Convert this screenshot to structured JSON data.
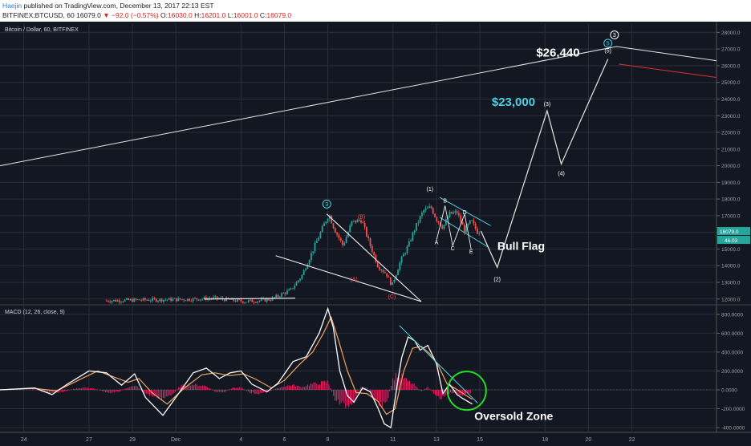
{
  "header": {
    "author": "Haejin",
    "published_text": " published on TradingView.com, December 13, 2017 22:13 EST",
    "symbol": "BITFINEX:BTCUSD, 60",
    "last": "16079.0",
    "change": "−92.0 (−0.57%)",
    "open_label": "O:",
    "open": "16030.0",
    "high_label": "H:",
    "high": "16201.0",
    "low_label": "L:",
    "low": "16001.0",
    "close_label": "C:",
    "close": "16079.0"
  },
  "colors": {
    "bg": "#131722",
    "up": "#26a69a",
    "down": "#ef5350",
    "grid": "#2a2e39",
    "text_light": "#d1d4dc",
    "teal": "#4dd0e1",
    "macd_line": "#ffffff",
    "signal_line": "#f4a460",
    "histogram": "#e91e63",
    "oversold_circle": "#22dd22"
  },
  "chart_data": [
    {
      "type": "candlestick",
      "title": "Bitcoin / Dollar, 60, BITFINEX",
      "ylim": [
        11700,
        28500
      ],
      "y_ticks": [
        12000,
        13000,
        14000,
        15000,
        16000,
        17000,
        18000,
        19000,
        20000,
        21000,
        22000,
        23000,
        24000,
        25000,
        26000,
        27000,
        28000
      ],
      "y_tick_labels": [
        "12000.0",
        "13000.0",
        "14000.0",
        "15000.0",
        "16000.0",
        "17000.0",
        "18000.0",
        "19000.0",
        "20000.0",
        "21000.0",
        "22000.0",
        "23000.0",
        "24000.0",
        "25000.0",
        "26000.0",
        "27000.0",
        "28000.0"
      ],
      "x_tick_labels": [
        "24",
        "27",
        "29",
        "Dec",
        "4",
        "6",
        "8",
        "11",
        "13",
        "15",
        "18",
        "20",
        "22"
      ],
      "x_tick_days": [
        -7,
        -4,
        -2,
        0,
        3,
        5,
        7,
        10,
        12,
        14,
        17,
        19,
        21
      ],
      "x_range_days": [
        -8.1,
        24.9
      ],
      "price_path": [
        [
          -3.2,
          11900
        ],
        [
          -1.3,
          11950
        ],
        [
          0.5,
          11980
        ],
        [
          1.8,
          12050
        ],
        [
          3.2,
          11850
        ],
        [
          3.8,
          11900
        ],
        [
          4.4,
          12000
        ],
        [
          5.3,
          12550
        ],
        [
          5.8,
          13400
        ],
        [
          6.4,
          15200
        ],
        [
          6.8,
          16400
        ],
        [
          7.05,
          17100
        ],
        [
          7.3,
          16200
        ],
        [
          7.7,
          15200
        ],
        [
          8.1,
          16600
        ],
        [
          8.55,
          16750
        ],
        [
          8.9,
          15400
        ],
        [
          9.3,
          14000
        ],
        [
          9.7,
          13500
        ],
        [
          9.95,
          12800
        ],
        [
          10.35,
          14300
        ],
        [
          10.7,
          15200
        ],
        [
          11.0,
          16200
        ],
        [
          11.4,
          17300
        ],
        [
          11.75,
          17500
        ],
        [
          12.0,
          16800
        ],
        [
          12.3,
          16300
        ],
        [
          12.6,
          17100
        ],
        [
          12.95,
          17200
        ],
        [
          13.3,
          16100
        ],
        [
          13.6,
          16700
        ],
        [
          13.9,
          16000
        ],
        [
          14.05,
          16079
        ]
      ],
      "last_price": 16079,
      "last_price_label": "16079.0",
      "second_price_tag": "46.03",
      "projection": [
        [
          14.05,
          16079
        ],
        [
          14.8,
          13900
        ],
        [
          17.1,
          23300
        ],
        [
          17.75,
          20100
        ],
        [
          19.9,
          26400
        ]
      ],
      "trendline_long": [
        [
          -8.1,
          20000
        ],
        [
          20.3,
          27150
        ],
        [
          24.9,
          26300
        ]
      ],
      "red_line": [
        [
          20.4,
          26100
        ],
        [
          24.9,
          25300
        ]
      ],
      "triangle_lines": [
        [
          [
            6.95,
            17100
          ],
          [
            11.3,
            11850
          ]
        ],
        [
          [
            4.6,
            14600
          ],
          [
            11.3,
            11850
          ]
        ],
        [
          [
            1.3,
            12000
          ],
          [
            5.5,
            12050
          ]
        ]
      ],
      "flag_lines": [
        [
          [
            12.15,
            18100
          ],
          [
            14.5,
            16400
          ]
        ],
        [
          [
            12.15,
            16900
          ],
          [
            14.4,
            15100
          ]
        ]
      ],
      "wave_labels": [
        {
          "text": "3",
          "x": 6.95,
          "y": 17700,
          "circle": true,
          "color": "#4dd0e1"
        },
        {
          "text": "(B)",
          "x": 8.55,
          "y": 16950,
          "color": "#ef5350"
        },
        {
          "text": "(A)",
          "x": 8.2,
          "y": 13200,
          "color": "#ef5350"
        },
        {
          "text": "(C)",
          "x": 9.95,
          "y": 12150,
          "color": "#ef5350"
        },
        {
          "text": "(1)",
          "x": 11.7,
          "y": 18600,
          "color": "#ffffff"
        },
        {
          "text": "B",
          "x": 12.4,
          "y": 17900,
          "color": "#ffffff"
        },
        {
          "text": "D",
          "x": 13.3,
          "y": 17200,
          "color": "#ffffff"
        },
        {
          "text": "A",
          "x": 12.0,
          "y": 15400,
          "color": "#ffffff"
        },
        {
          "text": "C",
          "x": 12.75,
          "y": 15050,
          "color": "#ffffff"
        },
        {
          "text": "E",
          "x": 13.6,
          "y": 14850,
          "color": "#ffffff"
        },
        {
          "text": "(2)",
          "x": 14.8,
          "y": 13200,
          "color": "#ffffff"
        },
        {
          "text": "(3)",
          "x": 17.1,
          "y": 23700,
          "color": "#ffffff"
        },
        {
          "text": "(4)",
          "x": 17.75,
          "y": 19550,
          "color": "#ffffff"
        },
        {
          "text": "(5)",
          "x": 19.9,
          "y": 26900,
          "color": "#ffffff"
        },
        {
          "text": "3",
          "x": 20.2,
          "y": 27850,
          "circle": true,
          "color": "#ffffff"
        },
        {
          "text": "5",
          "x": 19.9,
          "y": 27350,
          "circle": true,
          "color": "#4dd0e1"
        }
      ],
      "annotations": [
        {
          "text": "$26,440",
          "x": 17.6,
          "y": 26550,
          "color": "#ffffff",
          "size": 15
        },
        {
          "text": "$23,000",
          "x": 15.55,
          "y": 23600,
          "color": "#4dd0e1",
          "size": 15
        },
        {
          "text": "Bull Flag",
          "x": 15.9,
          "y": 14950,
          "color": "#ffffff",
          "size": 14
        }
      ]
    },
    {
      "type": "line",
      "title": "MACD (12, 26, close, 9)",
      "ylim": [
        -450000,
        900000
      ],
      "y_ticks": [
        -400000,
        -200000,
        0,
        200000,
        400000,
        600000,
        800000
      ],
      "y_tick_labels": [
        "-400.0000",
        "-200.0000",
        "0.0000",
        "200.0000",
        "400.0000",
        "600.0000",
        "800.0000"
      ],
      "series": [
        {
          "name": "MACD",
          "path": [
            [
              -8.1,
              0
            ],
            [
              -6.5,
              20000
            ],
            [
              -5.7,
              -50000
            ],
            [
              -5.0,
              60000
            ],
            [
              -4.0,
              200000
            ],
            [
              -3.2,
              180000
            ],
            [
              -2.5,
              50000
            ],
            [
              -1.9,
              170000
            ],
            [
              -1.4,
              -80000
            ],
            [
              -0.6,
              -270000
            ],
            [
              0.0,
              -80000
            ],
            [
              0.8,
              180000
            ],
            [
              1.4,
              230000
            ],
            [
              2.0,
              120000
            ],
            [
              2.5,
              180000
            ],
            [
              3.0,
              200000
            ],
            [
              3.5,
              60000
            ],
            [
              4.2,
              -20000
            ],
            [
              4.7,
              70000
            ],
            [
              5.4,
              300000
            ],
            [
              6.0,
              350000
            ],
            [
              6.6,
              600000
            ],
            [
              7.0,
              860000
            ],
            [
              7.25,
              660000
            ],
            [
              7.55,
              200000
            ],
            [
              7.9,
              -60000
            ],
            [
              8.2,
              -130000
            ],
            [
              8.6,
              20000
            ],
            [
              8.95,
              -20000
            ],
            [
              9.3,
              -190000
            ],
            [
              9.6,
              -360000
            ],
            [
              9.9,
              -400000
            ],
            [
              10.2,
              60000
            ],
            [
              10.4,
              340000
            ],
            [
              10.7,
              560000
            ],
            [
              11.0,
              520000
            ],
            [
              11.25,
              420000
            ],
            [
              11.6,
              470000
            ],
            [
              12.0,
              280000
            ],
            [
              12.3,
              -40000
            ],
            [
              12.6,
              60000
            ],
            [
              12.95,
              -50000
            ],
            [
              13.2,
              -90000
            ],
            [
              13.5,
              -130000
            ],
            [
              13.65,
              -150000
            ]
          ]
        },
        {
          "name": "Signal",
          "path": [
            [
              -8.1,
              0
            ],
            [
              -6.5,
              15000
            ],
            [
              -5.5,
              -10000
            ],
            [
              -4.5,
              100000
            ],
            [
              -3.6,
              200000
            ],
            [
              -2.9,
              140000
            ],
            [
              -2.2,
              80000
            ],
            [
              -1.7,
              120000
            ],
            [
              -1.1,
              -30000
            ],
            [
              -0.4,
              -150000
            ],
            [
              0.4,
              20000
            ],
            [
              1.2,
              160000
            ],
            [
              1.8,
              180000
            ],
            [
              2.5,
              150000
            ],
            [
              3.1,
              170000
            ],
            [
              3.7,
              110000
            ],
            [
              4.4,
              20000
            ],
            [
              5.0,
              100000
            ],
            [
              5.7,
              270000
            ],
            [
              6.3,
              400000
            ],
            [
              6.8,
              600000
            ],
            [
              7.15,
              770000
            ],
            [
              7.5,
              520000
            ],
            [
              7.9,
              200000
            ],
            [
              8.3,
              -30000
            ],
            [
              8.8,
              -40000
            ],
            [
              9.3,
              -120000
            ],
            [
              9.7,
              -260000
            ],
            [
              10.1,
              -200000
            ],
            [
              10.5,
              200000
            ],
            [
              10.9,
              440000
            ],
            [
              11.3,
              460000
            ],
            [
              11.7,
              380000
            ],
            [
              12.1,
              250000
            ],
            [
              12.5,
              60000
            ],
            [
              12.9,
              10000
            ],
            [
              13.3,
              -50000
            ],
            [
              13.65,
              -100000
            ]
          ]
        }
      ],
      "histogram": [
        [
          -6.6,
          10000
        ],
        [
          -6.2,
          -15000
        ],
        [
          -5.8,
          -40000
        ],
        [
          -5.4,
          -30000
        ],
        [
          -5.0,
          -10000
        ],
        [
          -4.6,
          15000
        ],
        [
          -4.2,
          25000
        ],
        [
          -3.8,
          15000
        ],
        [
          -3.4,
          -15000
        ],
        [
          -3.0,
          -30000
        ],
        [
          -2.6,
          -20000
        ],
        [
          -2.2,
          30000
        ],
        [
          -1.8,
          40000
        ],
        [
          -1.4,
          -40000
        ],
        [
          -1.0,
          -70000
        ],
        [
          -0.6,
          -90000
        ],
        [
          -0.2,
          -60000
        ],
        [
          0.2,
          40000
        ],
        [
          0.6,
          60000
        ],
        [
          1.0,
          50000
        ],
        [
          1.4,
          40000
        ],
        [
          1.8,
          -20000
        ],
        [
          2.2,
          -30000
        ],
        [
          2.6,
          20000
        ],
        [
          3.0,
          25000
        ],
        [
          3.4,
          -30000
        ],
        [
          3.8,
          -40000
        ],
        [
          4.2,
          -25000
        ],
        [
          4.6,
          10000
        ],
        [
          5.0,
          40000
        ],
        [
          5.4,
          50000
        ],
        [
          5.8,
          30000
        ],
        [
          6.2,
          60000
        ],
        [
          6.6,
          70000
        ],
        [
          7.0,
          90000
        ],
        [
          7.3,
          -90000
        ],
        [
          7.6,
          -150000
        ],
        [
          7.9,
          -170000
        ],
        [
          8.2,
          -110000
        ],
        [
          8.5,
          30000
        ],
        [
          8.8,
          20000
        ],
        [
          9.1,
          -80000
        ],
        [
          9.4,
          -150000
        ],
        [
          9.7,
          -160000
        ],
        [
          10.0,
          120000
        ],
        [
          10.2,
          170000
        ],
        [
          10.4,
          140000
        ],
        [
          10.7,
          90000
        ],
        [
          11.0,
          50000
        ],
        [
          11.3,
          -20000
        ],
        [
          11.6,
          30000
        ],
        [
          11.9,
          -40000
        ],
        [
          12.2,
          -90000
        ],
        [
          12.5,
          -40000
        ],
        [
          12.8,
          -30000
        ],
        [
          13.1,
          -60000
        ],
        [
          13.4,
          -40000
        ],
        [
          13.6,
          -50000
        ]
      ],
      "divergence_line": [
        [
          10.3,
          680000
        ],
        [
          13.9,
          -140000
        ]
      ],
      "oversold_circle": {
        "x": 13.4,
        "y": -10000
      },
      "annotations": [
        {
          "text": "Oversold Zone",
          "x": 13.75,
          "y": -320000,
          "color": "#ffffff",
          "size": 14
        }
      ]
    }
  ]
}
